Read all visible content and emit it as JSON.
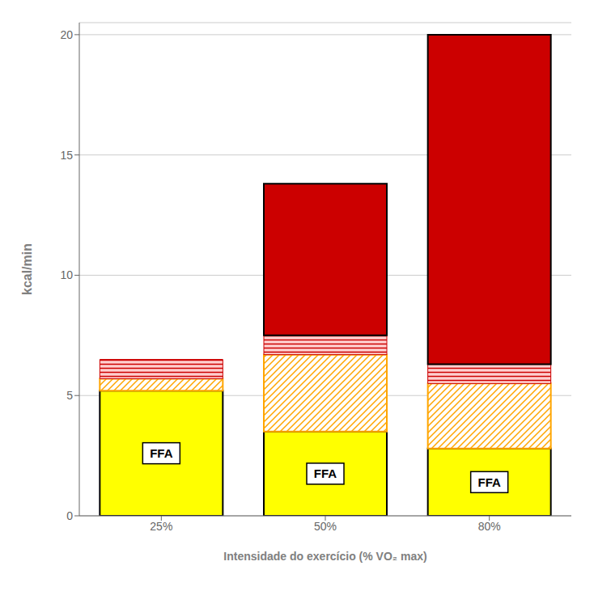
{
  "chart_data": {
    "type": "bar",
    "stacked": true,
    "categories": [
      "25%",
      "50%",
      "80%"
    ],
    "series": [
      {
        "color": "#FFFF00",
        "values": [
          5.2,
          3.5,
          2.8
        ]
      },
      {
        "color": "#FFA500",
        "values": [
          0.5,
          3.2,
          2.7
        ]
      },
      {
        "color": "#CC0000",
        "values": [
          0.8,
          0.8,
          0.8
        ]
      },
      {
        "color": "#CC0000",
        "values": [
          0.0,
          6.3,
          13.7
        ]
      }
    ],
    "annotation": {
      "text": "FFA",
      "series": 0
    },
    "xlabel": "Intensidade do exercício (% VO₂ max)",
    "ylabel": "kcal/min",
    "ylim": [
      0,
      20.5
    ],
    "yticks": [
      0,
      5,
      10,
      15,
      20
    ],
    "grid": true
  }
}
